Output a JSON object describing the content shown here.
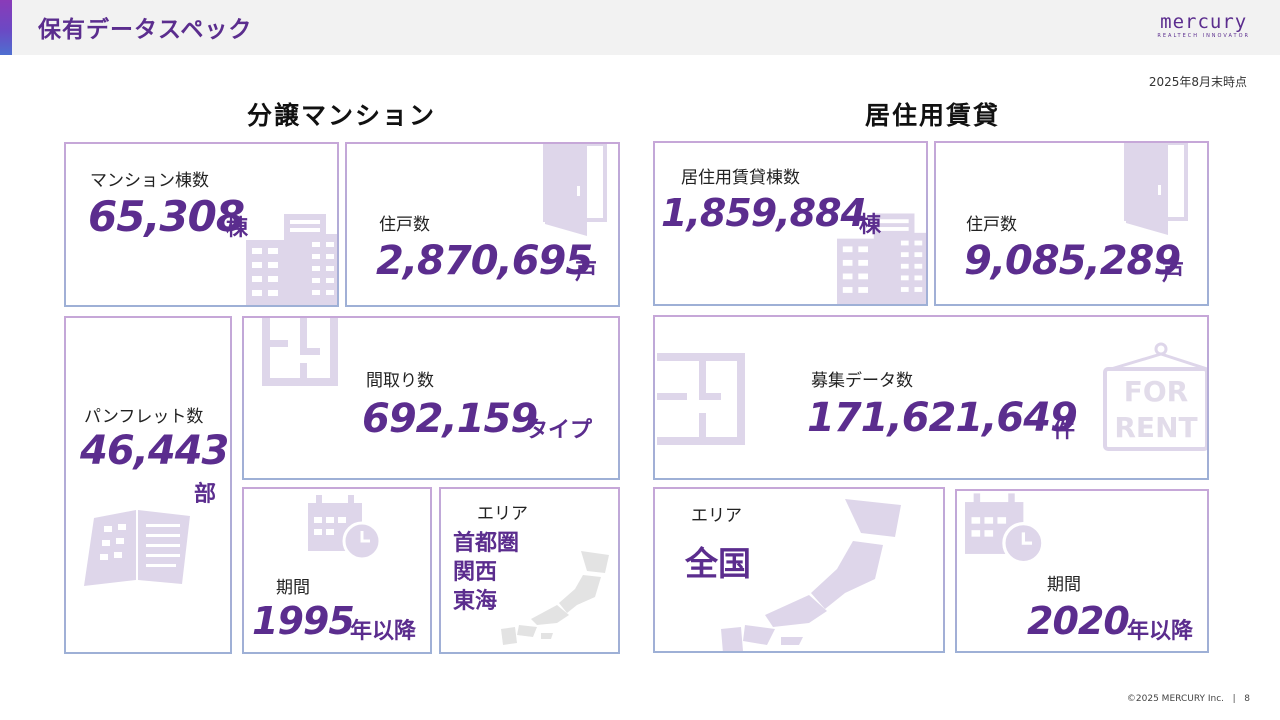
{
  "header": {
    "title": "保有データスペック",
    "logo_main": "mercury",
    "logo_sub": "REALTECH INNOVATOR"
  },
  "as_of": "2025年8月末時点",
  "sections": {
    "condo": "分譲マンション",
    "rental": "居住用賃貸"
  },
  "condo": {
    "buildings": {
      "label": "マンション棟数",
      "value": "65,308",
      "unit": "棟"
    },
    "units": {
      "label": "住戸数",
      "value": "2,870,695",
      "unit": "戸"
    },
    "pamphlets": {
      "label": "パンフレット数",
      "value": "46,443",
      "unit": "部"
    },
    "floorplans": {
      "label": "間取り数",
      "value": "692,159",
      "unit": "タイプ"
    },
    "period": {
      "label": "期間",
      "value": "1995",
      "unit": "年以降"
    },
    "area": {
      "label": "エリア",
      "regions": [
        "首都圏",
        "関西",
        "東海"
      ]
    }
  },
  "rental": {
    "buildings": {
      "label": "居住用賃貸棟数",
      "value": "1,859,884",
      "unit": "棟"
    },
    "units": {
      "label": "住戸数",
      "value": "9,085,289",
      "unit": "戸"
    },
    "listings": {
      "label": "募集データ数",
      "value": "171,621,649",
      "unit": "件"
    },
    "area": {
      "label": "エリア",
      "value": "全国"
    },
    "period": {
      "label": "期間",
      "value": "2020",
      "unit": "年以降"
    }
  },
  "icons": {
    "building": "building-icon",
    "door": "door-icon",
    "brochure": "brochure-icon",
    "floorplan": "floorplan-icon",
    "calendar": "calendar-icon",
    "japan_map": "japan-map-icon",
    "sign": "for-rent-sign-icon"
  },
  "sign_text": {
    "line1": "FOR",
    "line2": "RENT"
  },
  "colors": {
    "accent": "#5b2d8e",
    "icon": "#ded6ea",
    "border_top": "#c6a7d8",
    "border_bottom": "#9eb0d6"
  },
  "footer": {
    "copyright": "©2025 MERCURY Inc.",
    "page": "8"
  }
}
